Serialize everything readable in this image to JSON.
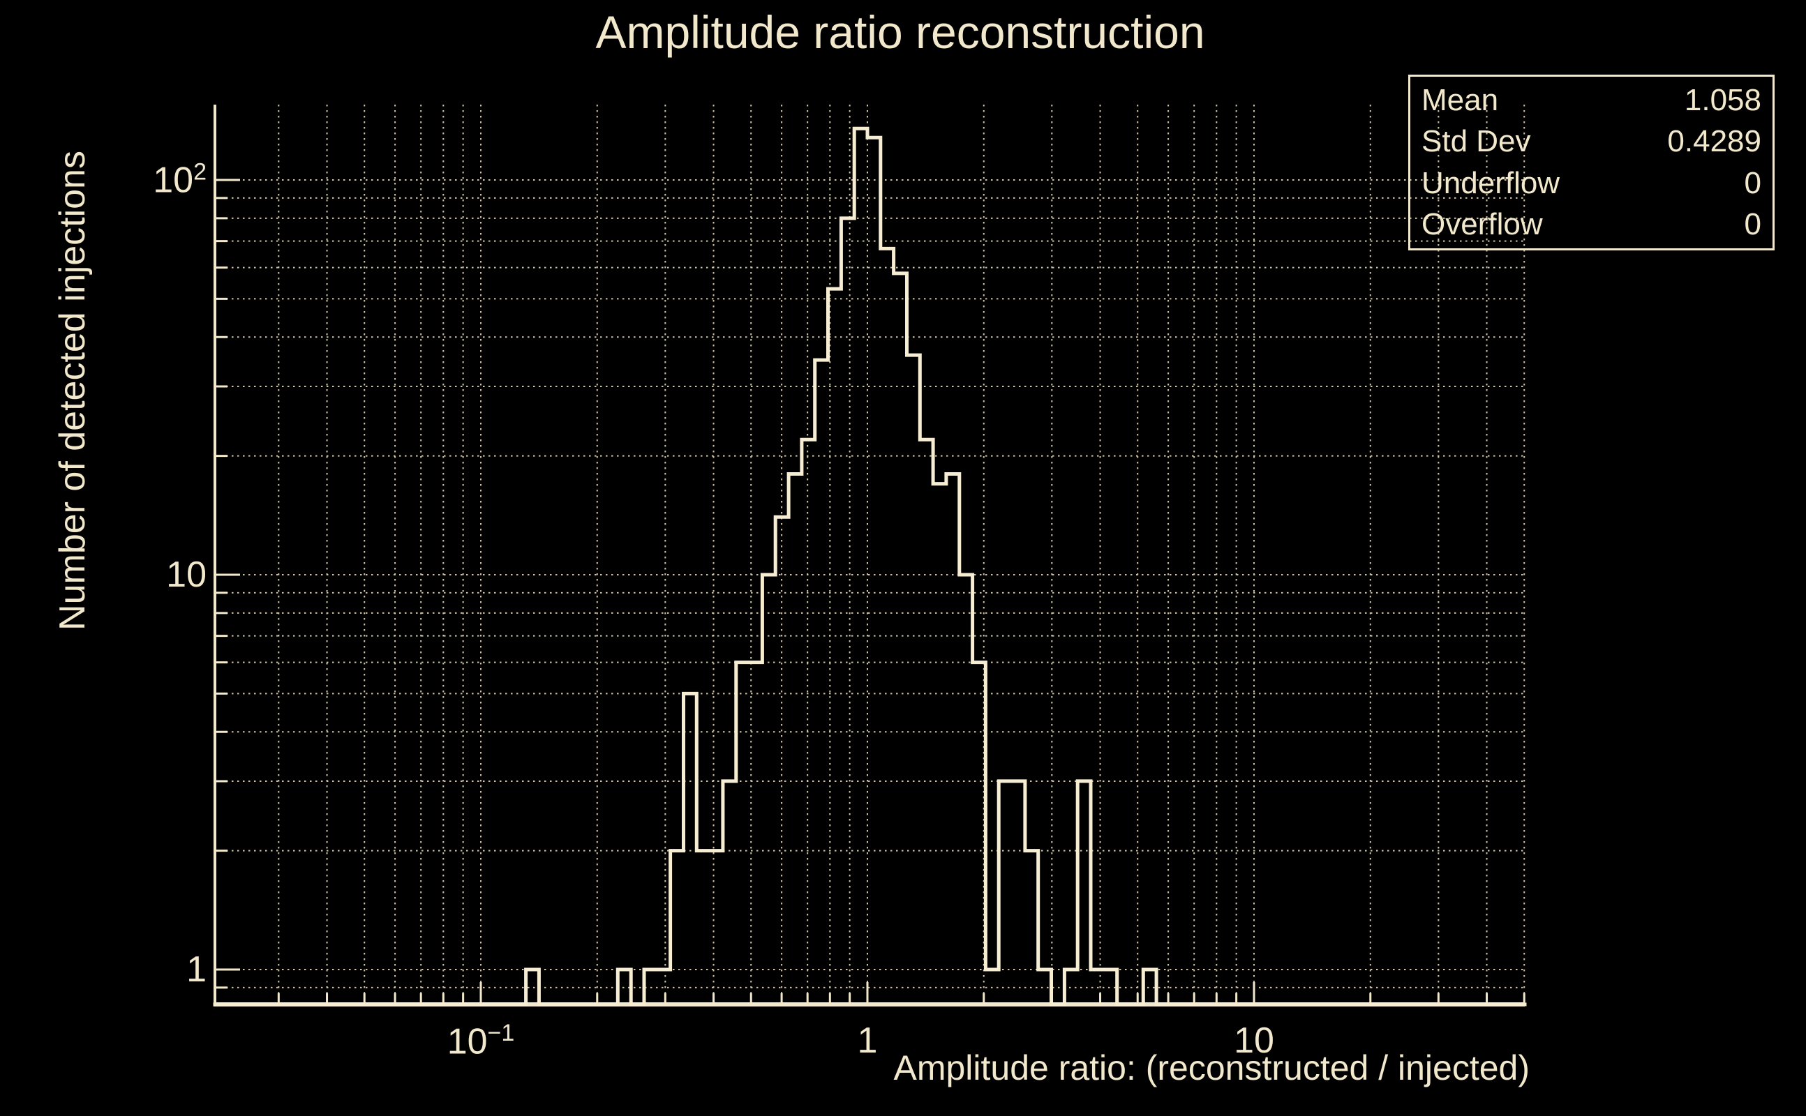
{
  "title": "Amplitude ratio reconstruction",
  "colors": {
    "background": "#000000",
    "foreground": "#f2e8cc",
    "grid": "#cfc5a6",
    "histogram_line": "#f6edd3"
  },
  "stats_box": {
    "rows": [
      {
        "label": "Mean",
        "value": "1.058"
      },
      {
        "label": "Std Dev",
        "value": "0.4289"
      },
      {
        "label": "Underflow",
        "value": "0"
      },
      {
        "label": "Overflow",
        "value": "0"
      }
    ]
  },
  "axis_tick_labels": {
    "x": [
      {
        "base": "10",
        "exp": "−1",
        "value": 0.1
      },
      {
        "base": "1",
        "exp": "",
        "value": 1
      },
      {
        "base": "10",
        "exp": "",
        "value": 10
      }
    ],
    "y": [
      {
        "base": "1",
        "exp": "",
        "value": 1
      },
      {
        "base": "10",
        "exp": "",
        "value": 10
      },
      {
        "base": "10",
        "exp": "2",
        "value": 100
      }
    ]
  },
  "chart_data": {
    "type": "bar",
    "subtype": "step-histogram",
    "title": "Amplitude ratio reconstruction",
    "xlabel": "Amplitude ratio: (reconstructed / injected)",
    "ylabel": "Number of detected injections",
    "x_scale": "log",
    "y_scale": "log",
    "xlim": [
      0.0205,
      50
    ],
    "ylim": [
      0.816,
      154
    ],
    "grid": true,
    "grid_style": "dotted",
    "bins": {
      "count": 100,
      "min": 0.02,
      "max": 50,
      "spacing": "log"
    },
    "counts": [
      0,
      0,
      0,
      0,
      0,
      0,
      0,
      0,
      0,
      0,
      0,
      0,
      0,
      0,
      0,
      0,
      0,
      0,
      0,
      0,
      0,
      0,
      0,
      0,
      1,
      0,
      0,
      0,
      0,
      0,
      0,
      1,
      0,
      1,
      1,
      2,
      5,
      2,
      2,
      3,
      6,
      6,
      10,
      14,
      18,
      22,
      35,
      53,
      80,
      135,
      128,
      67,
      58,
      36,
      22,
      17,
      18,
      10,
      6,
      1,
      3,
      3,
      2,
      1,
      0,
      1,
      3,
      1,
      1,
      0,
      0,
      1,
      0,
      0,
      0,
      0,
      0,
      0,
      0,
      0,
      0,
      0,
      0,
      0,
      0,
      0,
      0,
      0,
      0,
      0,
      0,
      0,
      0,
      0,
      0,
      0,
      0,
      0,
      0,
      0
    ],
    "x_major_ticks": [
      0.1,
      1,
      10
    ],
    "x_minor_ticks": [
      0.03,
      0.04,
      0.05,
      0.06,
      0.07,
      0.08,
      0.09,
      0.2,
      0.3,
      0.4,
      0.5,
      0.6,
      0.7,
      0.8,
      0.9,
      2,
      3,
      4,
      5,
      6,
      7,
      8,
      9,
      20,
      30,
      40,
      50
    ],
    "y_major_ticks": [
      1,
      10,
      100
    ],
    "y_minor_ticks": [
      0.9,
      2,
      3,
      4,
      5,
      6,
      7,
      8,
      9,
      20,
      30,
      40,
      50,
      60,
      70,
      80,
      90
    ],
    "legend": null,
    "stats": {
      "mean": 1.058,
      "std_dev": 0.4289,
      "underflow": 0,
      "overflow": 0
    }
  }
}
